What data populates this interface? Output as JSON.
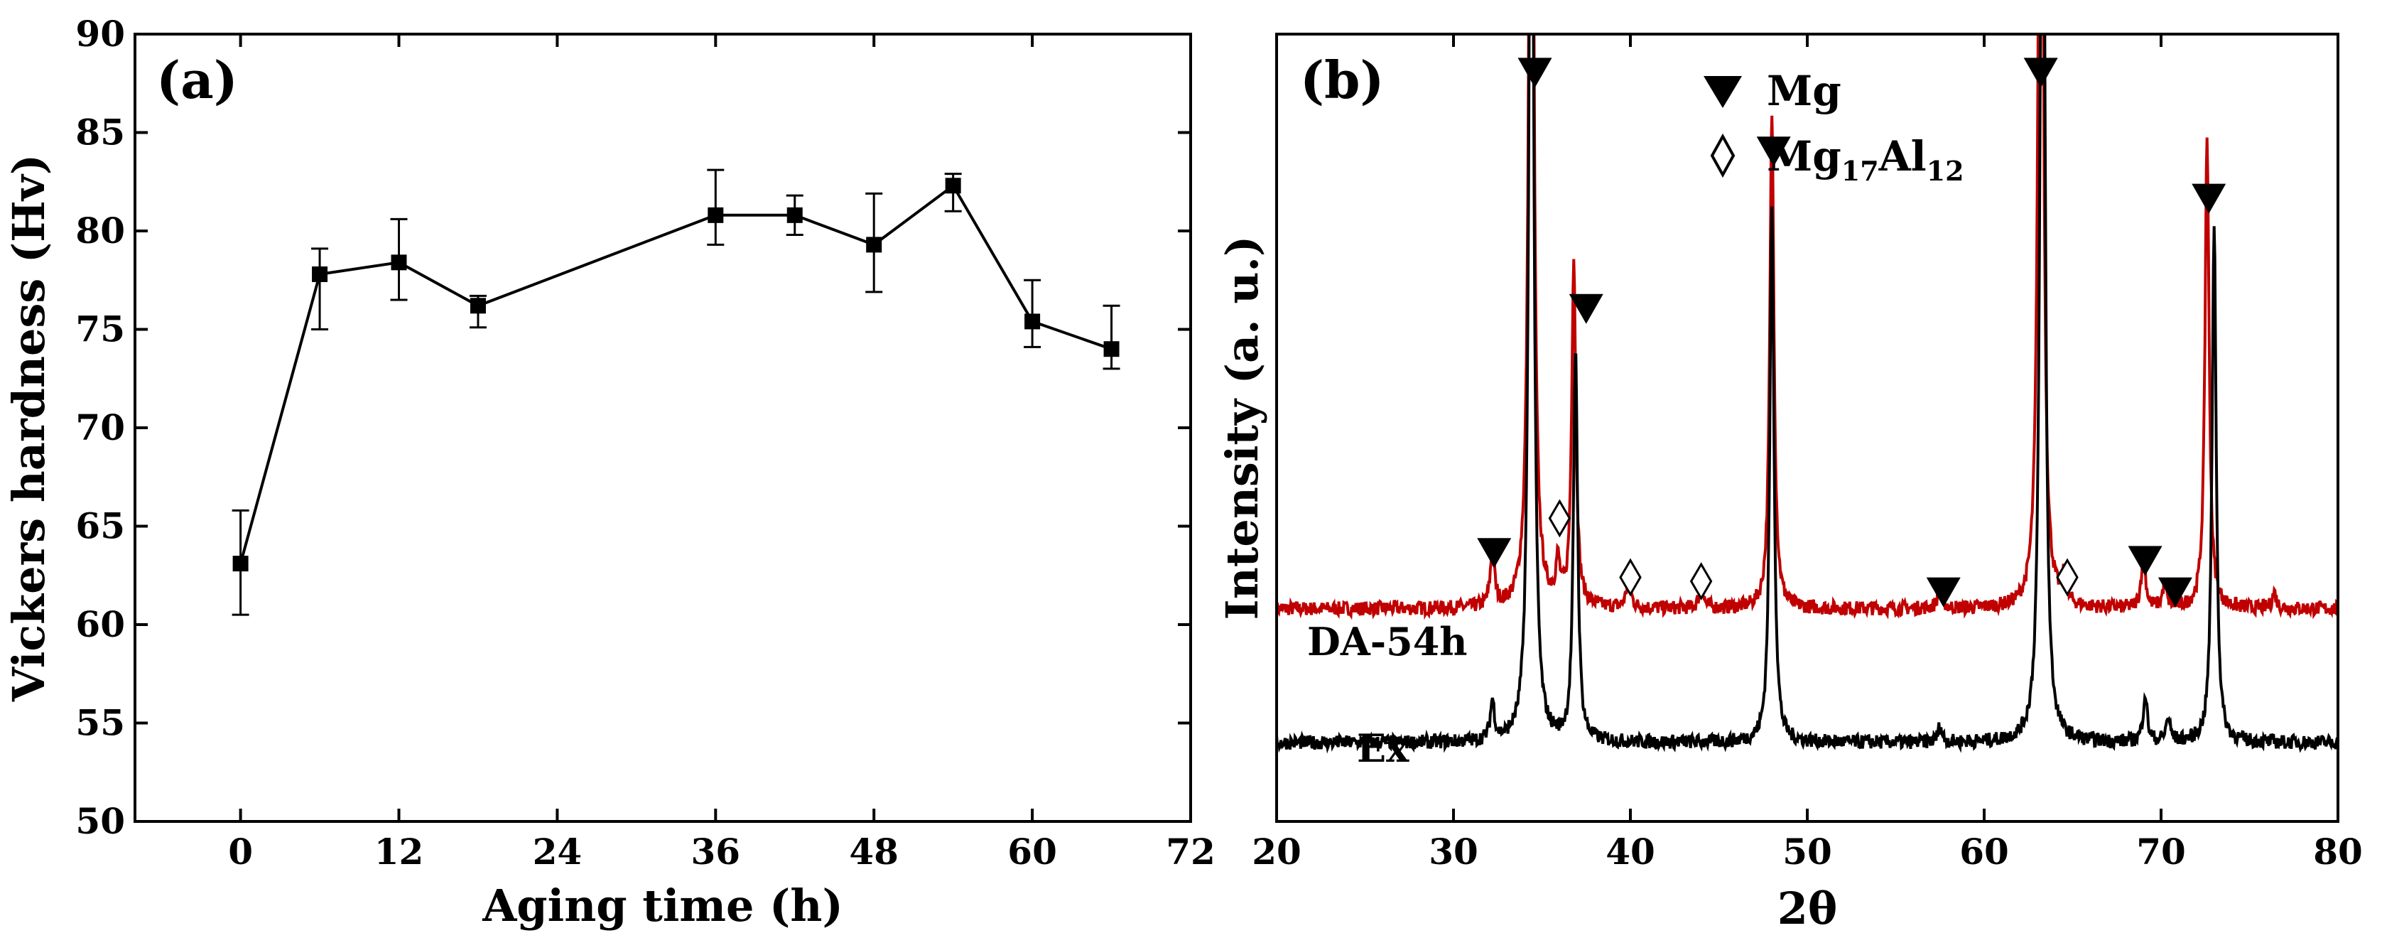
{
  "chart_data": [
    {
      "panel": "(a)",
      "type": "line",
      "xlabel": "Aging time (h)",
      "ylabel": "Vickers hardness (Hv)",
      "xlim": [
        -8,
        72
      ],
      "ylim": [
        50,
        90
      ],
      "xticks": [
        0,
        12,
        24,
        36,
        48,
        60,
        72
      ],
      "yticks": [
        50,
        55,
        60,
        65,
        70,
        75,
        80,
        85,
        90
      ],
      "series": [
        {
          "name": "hardness",
          "marker": "square",
          "x": [
            0,
            6,
            12,
            18,
            36,
            42,
            48,
            54,
            60,
            66
          ],
          "y": [
            63.1,
            77.8,
            78.4,
            76.2,
            80.8,
            80.8,
            79.3,
            82.3,
            75.4,
            74.0
          ],
          "err_low": [
            60.5,
            75.0,
            76.5,
            75.1,
            79.3,
            79.8,
            76.9,
            81.0,
            74.1,
            73.0
          ],
          "err_high": [
            65.8,
            79.1,
            80.6,
            76.7,
            83.1,
            81.8,
            81.9,
            82.9,
            77.5,
            76.2
          ]
        }
      ]
    },
    {
      "panel": "(b)",
      "type": "line",
      "xlabel": "2θ",
      "ylabel": "Intensity (a. u.)",
      "xlim": [
        20,
        80
      ],
      "xticks": [
        20,
        30,
        40,
        50,
        60,
        70,
        80
      ],
      "series": [
        {
          "name": "DA-54h",
          "label": "DA-54h",
          "color": "#c00000",
          "baseline": 0.27,
          "peaks": [
            {
              "pos": 32.2,
              "height": 0.07
            },
            {
              "pos": 34.4,
              "height": 1.6
            },
            {
              "pos": 35.9,
              "height": 0.05
            },
            {
              "pos": 36.8,
              "height": 0.44
            },
            {
              "pos": 39.9,
              "height": 0.04
            },
            {
              "pos": 44.0,
              "height": 0.03
            },
            {
              "pos": 48.0,
              "height": 0.63
            },
            {
              "pos": 57.5,
              "height": 0.03
            },
            {
              "pos": 63.2,
              "height": 1.6
            },
            {
              "pos": 64.5,
              "height": 0.03
            },
            {
              "pos": 69.0,
              "height": 0.07
            },
            {
              "pos": 70.2,
              "height": 0.03
            },
            {
              "pos": 72.6,
              "height": 0.6
            },
            {
              "pos": 76.4,
              "height": 0.02
            }
          ]
        },
        {
          "name": "Ex",
          "label": "Ex",
          "color": "#000000",
          "baseline": 0.1,
          "peaks": [
            {
              "pos": 32.2,
              "height": 0.05
            },
            {
              "pos": 34.4,
              "height": 1.6
            },
            {
              "pos": 36.9,
              "height": 0.5
            },
            {
              "pos": 48.0,
              "height": 0.68
            },
            {
              "pos": 57.5,
              "height": 0.02
            },
            {
              "pos": 63.3,
              "height": 1.6
            },
            {
              "pos": 69.1,
              "height": 0.06
            },
            {
              "pos": 70.4,
              "height": 0.03
            },
            {
              "pos": 73.0,
              "height": 0.66
            }
          ]
        }
      ],
      "annotations": {
        "Mg": [
          34.6,
          37.5,
          48.1,
          63.2,
          72.7,
          32.3,
          57.7,
          69.1,
          70.8
        ],
        "Mg17Al12": [
          36.0,
          40.0,
          44.0,
          64.7
        ]
      },
      "legend": {
        "placement": "top-center",
        "entries": [
          {
            "symbol": "filled-down-triangle",
            "label": "Mg"
          },
          {
            "symbol": "open-diamond",
            "label_main": "Mg",
            "sub1": "17",
            "mid": "Al",
            "sub2": "12"
          }
        ]
      }
    }
  ]
}
